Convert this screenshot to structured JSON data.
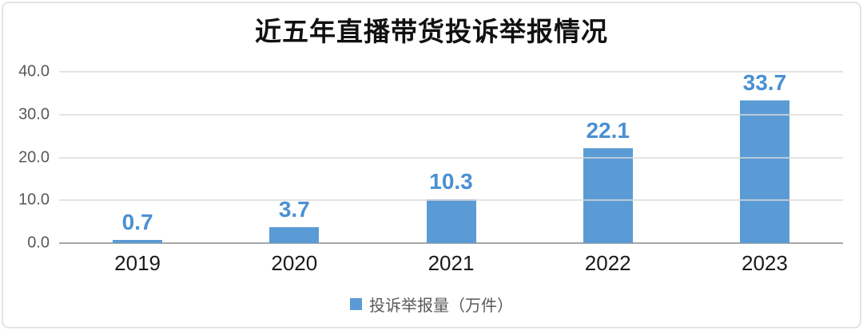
{
  "chart_data": {
    "type": "bar",
    "title": "近五年直播带货投诉举报情况",
    "categories": [
      "2019",
      "2020",
      "2021",
      "2022",
      "2023"
    ],
    "values": [
      0.7,
      3.7,
      10.3,
      22.1,
      33.7
    ],
    "value_labels": [
      "0.7",
      "3.7",
      "10.3",
      "22.1",
      "33.7"
    ],
    "xlabel": "",
    "ylabel": "",
    "ylim": [
      0,
      40
    ],
    "yticks": [
      0,
      10,
      20,
      30,
      40
    ],
    "ytick_labels": [
      "0.0",
      "10.0",
      "20.0",
      "30.0",
      "40.0"
    ],
    "grid": "horizontal",
    "legend": {
      "label": "投诉举报量（万件）",
      "position": "bottom",
      "swatch_color": "#5b9bd5"
    },
    "colors": {
      "bar": "#5b9bd5",
      "data_label": "#4a90d2",
      "gridline": "#d9d9d9",
      "axis_baseline": "#a6a6a6",
      "ytick_text": "#595959",
      "xtick_text": "#1a1a1a",
      "legend_text": "#595959",
      "title_text": "#111111",
      "card_border": "#e3e3e3"
    }
  }
}
